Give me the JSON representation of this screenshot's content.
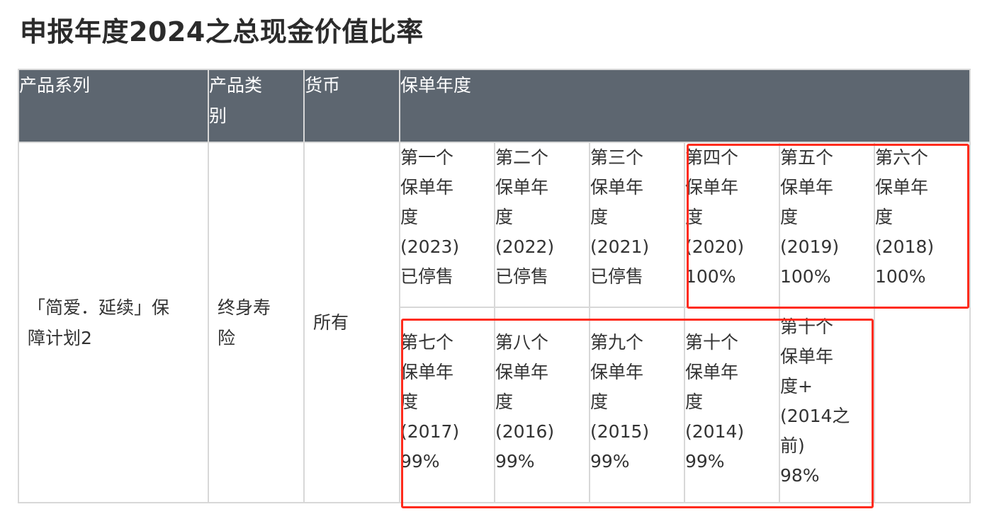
{
  "title": "申报年度2024之总现金价值比率",
  "headers": {
    "product_series": "产品系列",
    "product_type_line1": "产品类",
    "product_type_line2": "别",
    "currency": "货币",
    "policy_year": "保单年度"
  },
  "row": {
    "product_series_line1": "「简爱．延续」保",
    "product_series_line2": "障计划2",
    "product_type_line1": "终身寿",
    "product_type_line2": "险",
    "currency": "所有"
  },
  "years_row1": [
    {
      "l1": "第一个",
      "l2": "保单年",
      "l3": "度",
      "l4": "(2023)",
      "l5": "已停售"
    },
    {
      "l1": "第二个",
      "l2": "保单年",
      "l3": "度",
      "l4": "(2022)",
      "l5": "已停售"
    },
    {
      "l1": "第三个",
      "l2": "保单年",
      "l3": "度",
      "l4": "(2021)",
      "l5": "已停售"
    },
    {
      "l1": "第四个",
      "l2": "保单年",
      "l3": "度",
      "l4": "(2020)",
      "l5": "100%"
    },
    {
      "l1": "第五个",
      "l2": "保单年",
      "l3": "度",
      "l4": "(2019)",
      "l5": "100%"
    },
    {
      "l1": "第六个",
      "l2": "保单年",
      "l3": "度",
      "l4": "(2018)",
      "l5": "100%"
    }
  ],
  "years_row2": [
    {
      "l1": "第七个",
      "l2": "保单年",
      "l3": "度",
      "l4": "(2017)",
      "l5": "99%"
    },
    {
      "l1": "第八个",
      "l2": "保单年",
      "l3": "度",
      "l4": "(2016)",
      "l5": "99%"
    },
    {
      "l1": "第九个",
      "l2": "保单年",
      "l3": "度",
      "l4": "(2015)",
      "l5": "99%"
    },
    {
      "l1": "第十个",
      "l2": "保单年",
      "l3": "度",
      "l4": "(2014)",
      "l5": "99%"
    }
  ],
  "year_last": {
    "l1": "第十个",
    "l2": "保单年",
    "l3": "度+",
    "l4": "(2014之",
    "l5": "前)",
    "l6": "98%"
  },
  "highlight_color": "#ff2b1c",
  "header_bg": "#5d6670"
}
